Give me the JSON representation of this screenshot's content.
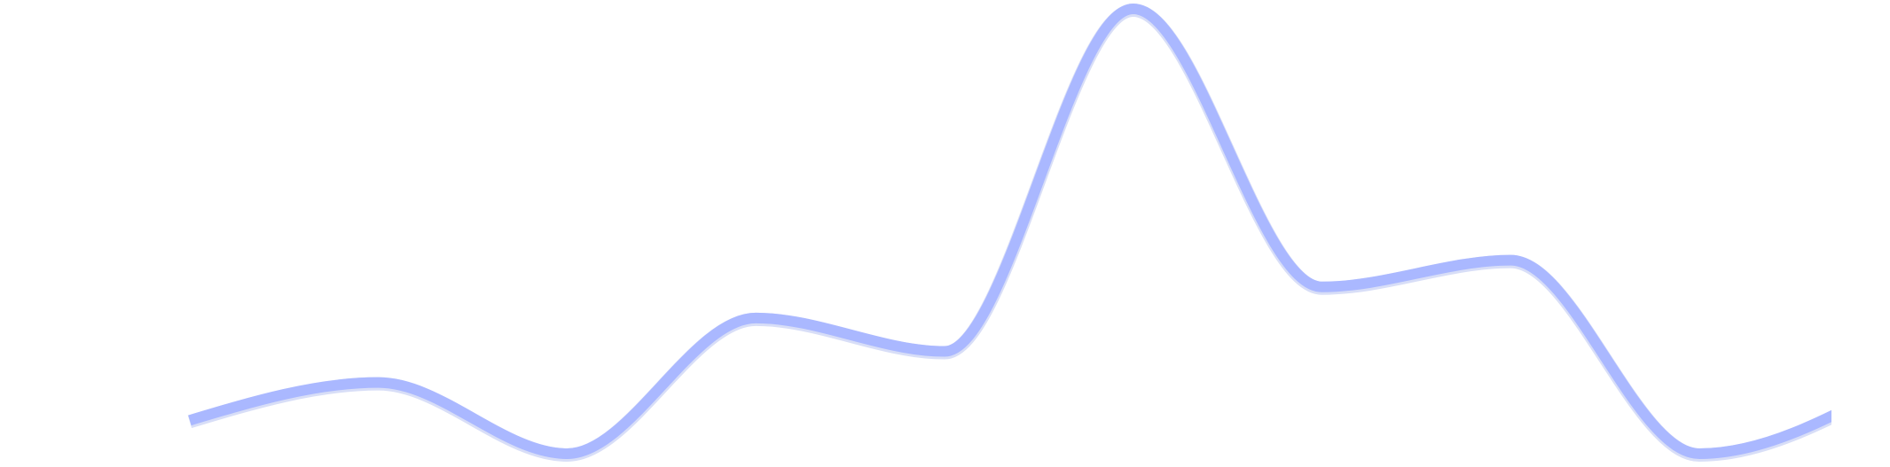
{
  "chart_data": {
    "type": "line",
    "title": "",
    "xlabel": "",
    "ylabel": "",
    "x": [
      0,
      1,
      2,
      3,
      4,
      5,
      6,
      7,
      8,
      9
    ],
    "series": [
      {
        "values": [
          1.5,
          3.2,
          0.0,
          6.1,
          4.6,
          20.0,
          7.5,
          8.7,
          0.0,
          3.0
        ],
        "color": "#aab8ff"
      }
    ],
    "xlim": [
      -0.7,
      8.7
    ],
    "ylim": [
      0.0,
      20.0
    ],
    "curve": "smooth",
    "grid": false,
    "legend": "none",
    "axes_visible": false
  }
}
